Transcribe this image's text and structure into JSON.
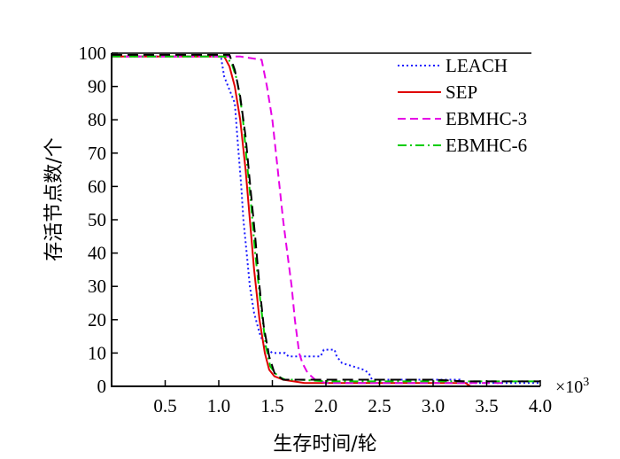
{
  "chart_data": {
    "type": "line",
    "title": "",
    "xlabel": "生存时间/轮",
    "ylabel": "存活节点数/个",
    "x_multiplier": "×10",
    "x_multiplier_exp": "3",
    "xlim": [
      0,
      4.0
    ],
    "ylim": [
      0,
      100
    ],
    "x_ticks": [
      "0.5",
      "1.0",
      "1.5",
      "2.0",
      "2.5",
      "3.0",
      "3.5",
      "4.0"
    ],
    "x_tick_values": [
      0.5,
      1.0,
      1.5,
      2.0,
      2.5,
      3.0,
      3.5,
      4.0
    ],
    "y_ticks": [
      "0",
      "10",
      "20",
      "30",
      "40",
      "50",
      "60",
      "70",
      "80",
      "90",
      "100"
    ],
    "y_tick_values": [
      0,
      10,
      20,
      30,
      40,
      50,
      60,
      70,
      80,
      90,
      100
    ],
    "grid": false,
    "legend_position": "top-right",
    "series": [
      {
        "name": "LEACH",
        "color": "#1a1aff",
        "dash": "dotted",
        "points": [
          [
            0,
            99
          ],
          [
            1.02,
            99
          ],
          [
            1.05,
            93
          ],
          [
            1.1,
            89
          ],
          [
            1.15,
            85
          ],
          [
            1.18,
            72
          ],
          [
            1.21,
            60
          ],
          [
            1.23,
            50
          ],
          [
            1.26,
            40
          ],
          [
            1.29,
            30
          ],
          [
            1.33,
            22
          ],
          [
            1.38,
            16
          ],
          [
            1.43,
            12
          ],
          [
            1.5,
            10
          ],
          [
            1.62,
            10
          ],
          [
            1.65,
            9
          ],
          [
            1.95,
            9
          ],
          [
            1.98,
            11
          ],
          [
            2.08,
            11
          ],
          [
            2.1,
            9
          ],
          [
            2.15,
            7
          ],
          [
            2.25,
            6
          ],
          [
            2.35,
            5
          ],
          [
            2.4,
            4
          ],
          [
            2.43,
            2
          ],
          [
            2.6,
            2
          ],
          [
            3.0,
            2
          ],
          [
            3.25,
            2
          ],
          [
            3.28,
            1
          ],
          [
            4.0,
            1
          ]
        ]
      },
      {
        "name": "SEP",
        "color": "#e00000",
        "dash": "solid",
        "points": [
          [
            0,
            99
          ],
          [
            1.05,
            99
          ],
          [
            1.1,
            96
          ],
          [
            1.15,
            90
          ],
          [
            1.2,
            80
          ],
          [
            1.25,
            65
          ],
          [
            1.29,
            50
          ],
          [
            1.33,
            35
          ],
          [
            1.38,
            20
          ],
          [
            1.43,
            10
          ],
          [
            1.47,
            5
          ],
          [
            1.52,
            3
          ],
          [
            1.6,
            2
          ],
          [
            1.8,
            1
          ],
          [
            2.0,
            1
          ],
          [
            3.3,
            1
          ],
          [
            3.35,
            0
          ],
          [
            4.0,
            0
          ]
        ]
      },
      {
        "name": "EBMHC-3",
        "color": "#e600e6",
        "dash": "dashed",
        "points": [
          [
            0,
            99
          ],
          [
            1.2,
            99
          ],
          [
            1.3,
            98.5
          ],
          [
            1.4,
            98
          ],
          [
            1.45,
            90
          ],
          [
            1.5,
            80
          ],
          [
            1.55,
            65
          ],
          [
            1.6,
            50
          ],
          [
            1.64,
            40
          ],
          [
            1.68,
            30
          ],
          [
            1.71,
            20
          ],
          [
            1.75,
            10
          ],
          [
            1.78,
            7
          ],
          [
            1.83,
            4
          ],
          [
            1.9,
            2
          ],
          [
            2.0,
            1
          ],
          [
            3.1,
            1
          ],
          [
            3.65,
            1
          ],
          [
            3.68,
            0
          ],
          [
            4.0,
            0
          ]
        ]
      },
      {
        "name": "EBMHC-6",
        "color": "#00cc00",
        "dash": "dashdot",
        "points": [
          [
            0,
            99
          ],
          [
            1.06,
            99
          ],
          [
            1.12,
            97
          ],
          [
            1.17,
            92
          ],
          [
            1.22,
            82
          ],
          [
            1.26,
            68
          ],
          [
            1.3,
            55
          ],
          [
            1.34,
            40
          ],
          [
            1.39,
            25
          ],
          [
            1.44,
            12
          ],
          [
            1.48,
            6
          ],
          [
            1.55,
            3
          ],
          [
            1.62,
            2
          ],
          [
            1.75,
            2
          ],
          [
            2.0,
            1.5
          ],
          [
            2.5,
            1.5
          ],
          [
            3.0,
            1.5
          ],
          [
            4.0,
            1.5
          ]
        ]
      },
      {
        "color": "#000000",
        "dash": "longdash",
        "points": [
          [
            0,
            99.5
          ],
          [
            1.1,
            99.5
          ],
          [
            1.15,
            95
          ],
          [
            1.2,
            87
          ],
          [
            1.25,
            75
          ],
          [
            1.3,
            58
          ],
          [
            1.34,
            45
          ],
          [
            1.38,
            30
          ],
          [
            1.42,
            18
          ],
          [
            1.47,
            9
          ],
          [
            1.52,
            4
          ],
          [
            1.6,
            2
          ],
          [
            1.8,
            2
          ],
          [
            2.5,
            2
          ],
          [
            3.0,
            2
          ],
          [
            3.3,
            1.5
          ],
          [
            4.0,
            1.5
          ]
        ]
      }
    ]
  }
}
